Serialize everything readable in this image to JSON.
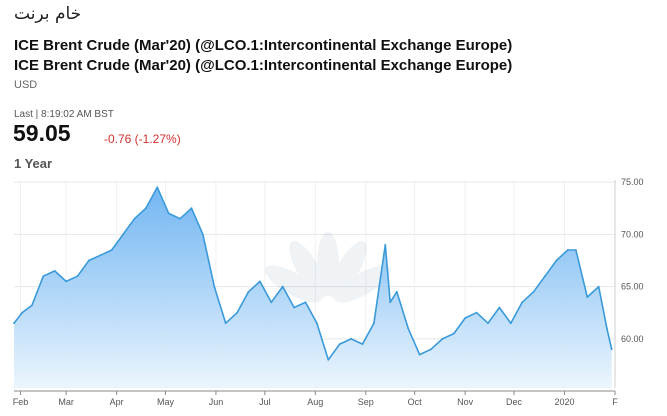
{
  "header": {
    "arabic_title": "خام برنت",
    "name_line1": "ICE Brent Crude (Mar'20) (@LCO.1:Intercontinental Exchange Europe)",
    "name_line2": "ICE Brent Crude (Mar'20) (@LCO.1:Intercontinental Exchange Europe)",
    "currency": "USD"
  },
  "quote": {
    "last_time": "Last | 8:19:02 AM BST",
    "price": "59.05",
    "change": "-0.76 (-1.27%)",
    "change_color": "#d0312d"
  },
  "range_label": "1 Year",
  "chart_data": {
    "type": "area",
    "line_color": "#3a9ad9",
    "fill_color": "#7fbef0",
    "grid": true,
    "x_ticks": [
      "Feb",
      "Mar",
      "Apr",
      "May",
      "Jun",
      "Jul",
      "Aug",
      "Sep",
      "Oct",
      "Nov",
      "Dec",
      "2020",
      "F"
    ],
    "y_ticks": [
      "75.00",
      "70.00",
      "65.00",
      "60.00"
    ],
    "ylim": [
      55.3,
      75.2
    ],
    "x": [
      "Jan 28",
      "Feb 2",
      "Feb 8",
      "Feb 15",
      "Feb 22",
      "Mar 1",
      "Mar 8",
      "Mar 15",
      "Mar 22",
      "Mar 29",
      "Apr 5",
      "Apr 12",
      "Apr 19",
      "Apr 26",
      "May 3",
      "May 10",
      "May 17",
      "May 24",
      "May 31",
      "Jun 7",
      "Jun 14",
      "Jun 21",
      "Jun 28",
      "Jul 5",
      "Jul 12",
      "Jul 19",
      "Jul 26",
      "Aug 2",
      "Aug 9",
      "Aug 16",
      "Aug 23",
      "Aug 30",
      "Sep 6",
      "Sep 13",
      "Sep 16",
      "Sep 20",
      "Sep 27",
      "Oct 4",
      "Oct 11",
      "Oct 18",
      "Oct 25",
      "Nov 1",
      "Nov 8",
      "Nov 15",
      "Nov 22",
      "Nov 29",
      "Dec 6",
      "Dec 13",
      "Dec 20",
      "Dec 27",
      "Jan 3",
      "Jan 8",
      "Jan 15",
      "Jan 22",
      "Jan 27",
      "Jan 30"
    ],
    "values": [
      61.5,
      62.5,
      63.2,
      66.0,
      66.5,
      65.5,
      66.0,
      67.5,
      68.0,
      68.5,
      70.0,
      71.5,
      72.5,
      74.5,
      72.0,
      71.5,
      72.5,
      70.0,
      65.0,
      61.5,
      62.5,
      64.5,
      65.5,
      63.5,
      65.0,
      63.0,
      63.5,
      61.5,
      58.0,
      59.5,
      60.0,
      59.5,
      61.5,
      69.0,
      63.5,
      64.5,
      61.0,
      58.5,
      59.0,
      60.0,
      60.5,
      62.0,
      62.5,
      61.5,
      63.0,
      61.5,
      63.5,
      64.5,
      66.0,
      67.5,
      68.5,
      68.5,
      64.0,
      65.0,
      61.0,
      59.0
    ]
  }
}
